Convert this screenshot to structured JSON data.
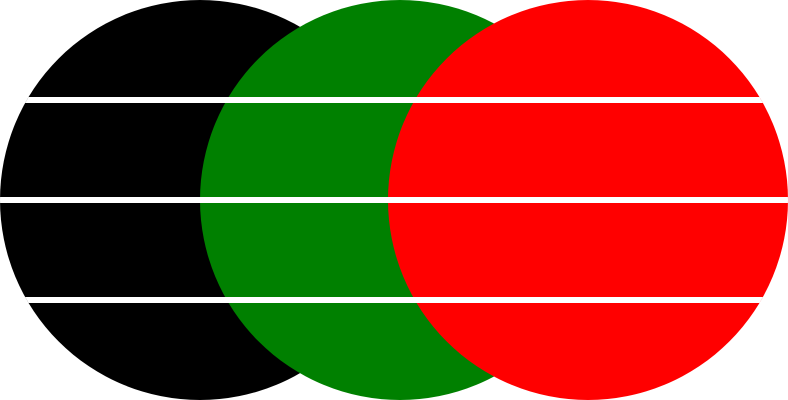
{
  "background_color": "#ffffff",
  "circles": [
    {
      "name": "black-circle",
      "color": "#000000"
    },
    {
      "name": "green-circle",
      "color": "#008000"
    },
    {
      "name": "red-circle",
      "color": "#ff0000"
    }
  ],
  "stripe_color": "#ffffff",
  "stripe_count": 3
}
